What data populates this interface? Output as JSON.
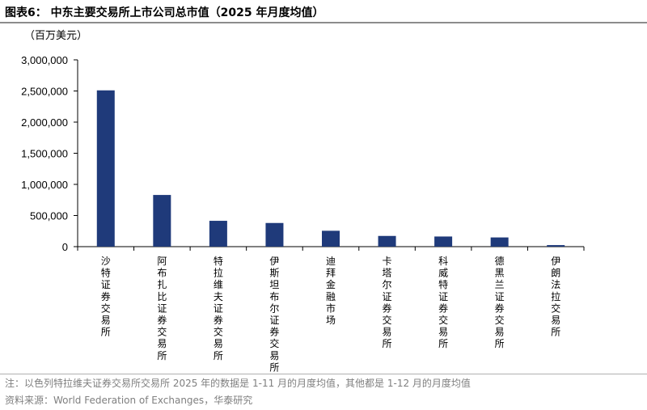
{
  "figure": {
    "title": "图表6： 中东主要交易所上市公司总市值（2025 年月度均值）",
    "unit": "（百万美元）"
  },
  "footer": {
    "note": "注：以色列特拉维夫证券交易所交易所 2025 年的数据是 1-11 月的月度均值，其他都是 1-12 月的月度均值",
    "source": "资料来源：World Federation of Exchanges，华泰研究"
  },
  "colors": {
    "bar": "#1f3a7a",
    "axis": "#000000"
  },
  "chart_data": {
    "type": "bar",
    "title": "中东主要交易所上市公司总市值（2025 年月度均值）",
    "ylabel": "百万美元",
    "xlabel": "",
    "categories": [
      "沙特证券交易所",
      "阿布扎比证券交易所",
      "特拉维夫证券交易所",
      "伊斯坦布尔证券交易所",
      "迪拜金融市场",
      "卡塔尔证券交易所",
      "科威特证券交易所",
      "德黑兰证券交易所",
      "伊朗法拉交易所"
    ],
    "values": [
      2510000,
      830000,
      415000,
      380000,
      255000,
      172000,
      163000,
      148000,
      25000
    ],
    "ylim": [
      0,
      3000000
    ],
    "yticks": [
      0,
      500000,
      1000000,
      1500000,
      2000000,
      2500000,
      3000000
    ],
    "ytick_labels": [
      "0",
      "500,000",
      "1,000,000",
      "1,500,000",
      "2,000,000",
      "2,500,000",
      "3,000,000"
    ],
    "grid": false,
    "legend": "none"
  }
}
